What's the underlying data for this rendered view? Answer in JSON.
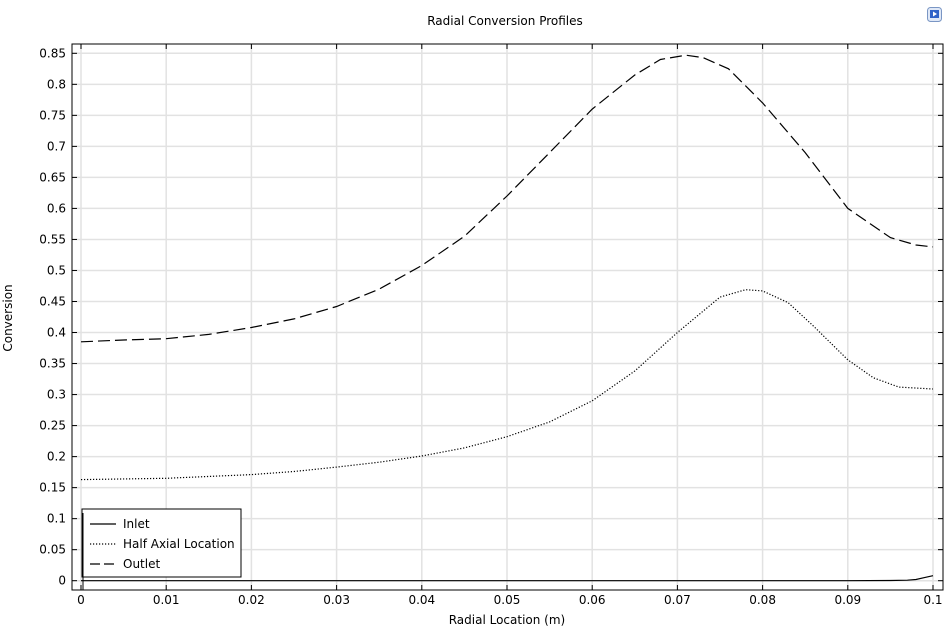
{
  "chart_data": {
    "type": "line",
    "title": "Radial Conversion Profiles",
    "xlabel": "Radial Location (m)",
    "ylabel": "Conversion",
    "xlim": [
      0,
      0.1
    ],
    "ylim": [
      -0.015,
      0.865
    ],
    "xticks": [
      0,
      0.01,
      0.02,
      0.03,
      0.04,
      0.05,
      0.06,
      0.07,
      0.08,
      0.09,
      0.1
    ],
    "xtick_labels": [
      "0",
      "0.01",
      "0.02",
      "0.03",
      "0.04",
      "0.05",
      "0.06",
      "0.07",
      "0.08",
      "0.09",
      "0.1"
    ],
    "yticks": [
      0,
      0.05,
      0.1,
      0.15,
      0.2,
      0.25,
      0.3,
      0.35,
      0.4,
      0.45,
      0.5,
      0.55,
      0.6,
      0.65,
      0.7,
      0.75,
      0.8,
      0.85
    ],
    "ytick_labels": [
      "0",
      "0.05",
      "0.1",
      "0.15",
      "0.2",
      "0.25",
      "0.3",
      "0.35",
      "0.4",
      "0.45",
      "0.5",
      "0.55",
      "0.6",
      "0.65",
      "0.7",
      "0.75",
      "0.8",
      "0.85"
    ],
    "grid": true,
    "legend_position": "bottom-left",
    "series": [
      {
        "name": "Inlet",
        "line_style": "solid",
        "x": [
          0,
          0.01,
          0.02,
          0.03,
          0.04,
          0.05,
          0.06,
          0.07,
          0.08,
          0.09,
          0.095,
          0.097,
          0.098,
          0.099,
          0.1
        ],
        "y": [
          0,
          0,
          0,
          0,
          0,
          0,
          0,
          0,
          0,
          0,
          0.0003,
          0.0008,
          0.002,
          0.005,
          0.008
        ]
      },
      {
        "name": "Half Axial Location",
        "line_style": "dotted",
        "x": [
          0,
          0.01,
          0.02,
          0.025,
          0.03,
          0.035,
          0.04,
          0.045,
          0.05,
          0.055,
          0.06,
          0.065,
          0.07,
          0.075,
          0.078,
          0.08,
          0.083,
          0.086,
          0.09,
          0.093,
          0.096,
          0.1
        ],
        "y": [
          0.163,
          0.165,
          0.171,
          0.176,
          0.183,
          0.191,
          0.201,
          0.214,
          0.232,
          0.256,
          0.29,
          0.338,
          0.4,
          0.457,
          0.469,
          0.467,
          0.448,
          0.41,
          0.356,
          0.327,
          0.312,
          0.309
        ]
      },
      {
        "name": "Outlet",
        "line_style": "dashed",
        "x": [
          0,
          0.005,
          0.01,
          0.015,
          0.02,
          0.025,
          0.03,
          0.035,
          0.04,
          0.045,
          0.05,
          0.055,
          0.06,
          0.065,
          0.068,
          0.071,
          0.073,
          0.076,
          0.08,
          0.085,
          0.09,
          0.095,
          0.098,
          0.1
        ],
        "y": [
          0.385,
          0.388,
          0.39,
          0.397,
          0.408,
          0.422,
          0.442,
          0.47,
          0.508,
          0.555,
          0.62,
          0.69,
          0.76,
          0.815,
          0.84,
          0.847,
          0.843,
          0.825,
          0.77,
          0.69,
          0.6,
          0.553,
          0.541,
          0.538
        ]
      }
    ]
  },
  "toolbar": {
    "corner_icon": "play-image-icon",
    "accent_color": "#2f62c8"
  }
}
